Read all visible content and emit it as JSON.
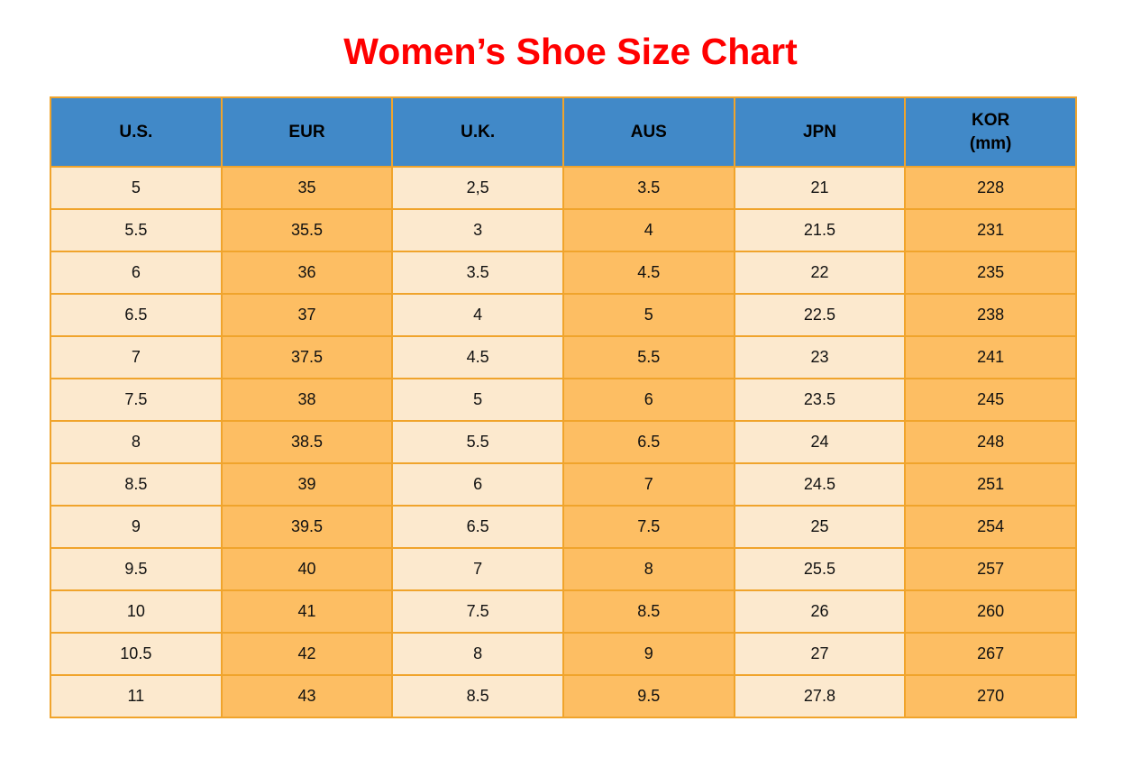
{
  "page": {
    "title": "Women’s Shoe Size Chart"
  },
  "colors": {
    "title": "#ff0000",
    "header_bg": "#4189c8",
    "header_text": "#000000",
    "cell_orange": "#fdbe63",
    "cell_cream": "#fce9ce",
    "border": "#f0a42c",
    "cell_text": "#111111",
    "page_bg": "#ffffff"
  },
  "table": {
    "columns": [
      {
        "key": "us",
        "label": "U.S."
      },
      {
        "key": "eur",
        "label": "EUR"
      },
      {
        "key": "uk",
        "label": "U.K."
      },
      {
        "key": "aus",
        "label": "AUS"
      },
      {
        "key": "jpn",
        "label": "JPN"
      },
      {
        "key": "kor",
        "label": "KOR\n(mm)"
      }
    ],
    "rows": [
      [
        "5",
        "35",
        "2,5",
        "3.5",
        "21",
        "228"
      ],
      [
        "5.5",
        "35.5",
        "3",
        "4",
        "21.5",
        "231"
      ],
      [
        "6",
        "36",
        "3.5",
        "4.5",
        "22",
        "235"
      ],
      [
        "6.5",
        "37",
        "4",
        "5",
        "22.5",
        "238"
      ],
      [
        "7",
        "37.5",
        "4.5",
        "5.5",
        "23",
        "241"
      ],
      [
        "7.5",
        "38",
        "5",
        "6",
        "23.5",
        "245"
      ],
      [
        "8",
        "38.5",
        "5.5",
        "6.5",
        "24",
        "248"
      ],
      [
        "8.5",
        "39",
        "6",
        "7",
        "24.5",
        "251"
      ],
      [
        "9",
        "39.5",
        "6.5",
        "7.5",
        "25",
        "254"
      ],
      [
        "9.5",
        "40",
        "7",
        "8",
        "25.5",
        "257"
      ],
      [
        "10",
        "41",
        "7.5",
        "8.5",
        "26",
        "260"
      ],
      [
        "10.5",
        "42",
        "8",
        "9",
        "27",
        "267"
      ],
      [
        "11",
        "43",
        "8.5",
        "9.5",
        "27.8",
        "270"
      ]
    ]
  },
  "chart_data": {
    "type": "table",
    "title": "Women’s Shoe Size Chart",
    "columns": [
      "U.S.",
      "EUR",
      "U.K.",
      "AUS",
      "JPN",
      "KOR (mm)"
    ],
    "rows": [
      [
        "5",
        "35",
        "2,5",
        "3.5",
        "21",
        "228"
      ],
      [
        "5.5",
        "35.5",
        "3",
        "4",
        "21.5",
        "231"
      ],
      [
        "6",
        "36",
        "3.5",
        "4.5",
        "22",
        "235"
      ],
      [
        "6.5",
        "37",
        "4",
        "5",
        "22.5",
        "238"
      ],
      [
        "7",
        "37.5",
        "4.5",
        "5.5",
        "23",
        "241"
      ],
      [
        "7.5",
        "38",
        "5",
        "6",
        "23.5",
        "245"
      ],
      [
        "8",
        "38.5",
        "5.5",
        "6.5",
        "24",
        "248"
      ],
      [
        "8.5",
        "39",
        "6",
        "7",
        "24.5",
        "251"
      ],
      [
        "9",
        "39.5",
        "6.5",
        "7.5",
        "25",
        "254"
      ],
      [
        "9.5",
        "40",
        "7",
        "8",
        "25.5",
        "257"
      ],
      [
        "10",
        "41",
        "7.5",
        "8.5",
        "26",
        "260"
      ],
      [
        "10.5",
        "42",
        "8",
        "9",
        "27",
        "267"
      ],
      [
        "11",
        "43",
        "8.5",
        "9.5",
        "27.8",
        "270"
      ]
    ]
  }
}
